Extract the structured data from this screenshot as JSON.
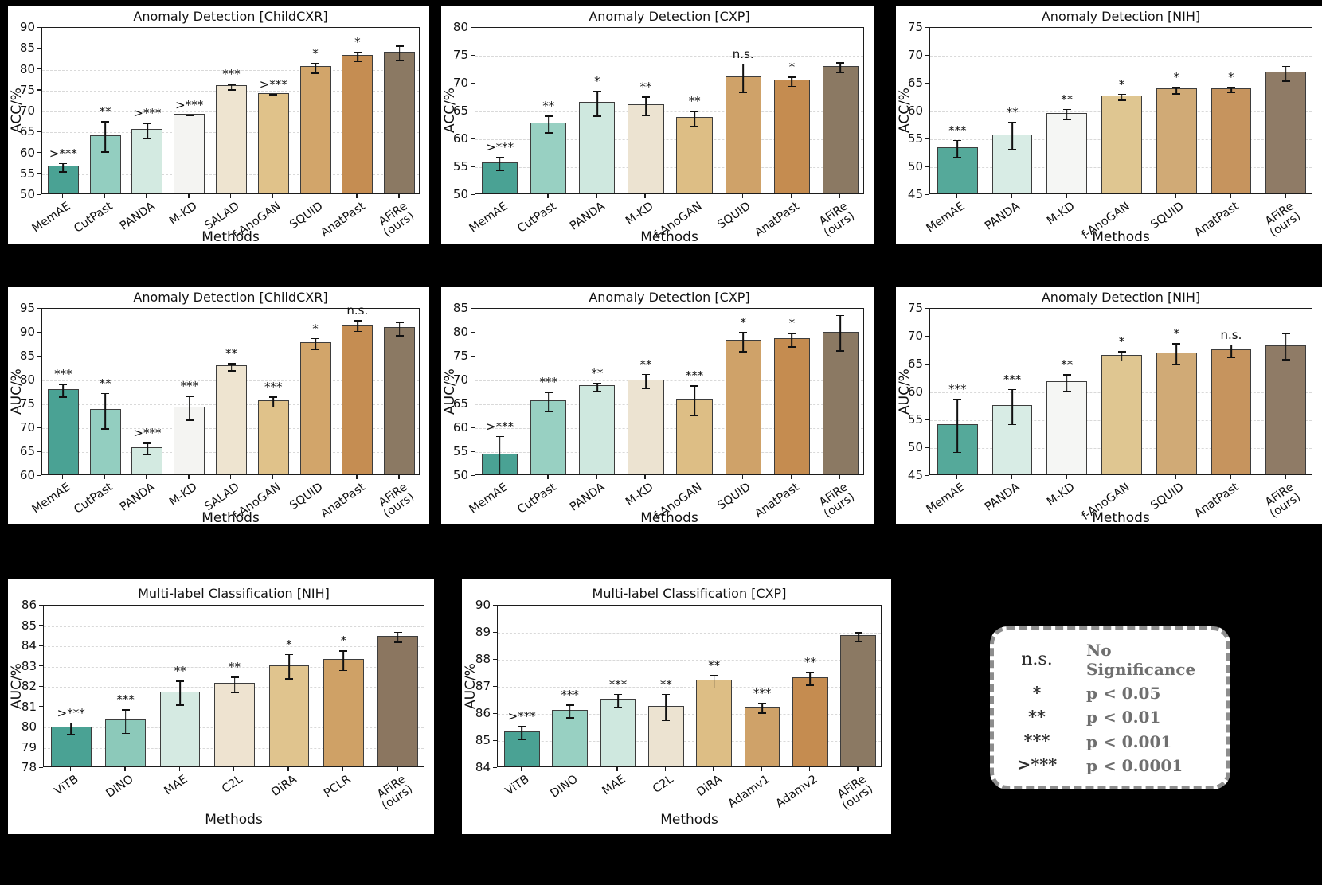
{
  "figure": {
    "background": "#000000",
    "panel_background": "#ffffff"
  },
  "chart_data": [
    {
      "id": "acc_childcxr",
      "type": "bar",
      "title": "Anomaly Detection [ChildCXR]",
      "xlabel": "Methods",
      "ylabel": "ACC/%",
      "ylim": [
        50,
        90
      ],
      "ytick_step": 5,
      "grid": "dashed-horizontal",
      "legend_position": "none",
      "categories": [
        "MemAE",
        "CutPast",
        "PANDA",
        "M-KD",
        "SALAD",
        "f-AnoGAN",
        "SQUID",
        "AnatPast",
        "AFiRe\n(ours)"
      ],
      "values": [
        56.6,
        64.0,
        65.4,
        69.1,
        75.9,
        74.0,
        80.4,
        83.1,
        84.0
      ],
      "errors": [
        1.1,
        3.7,
        1.9,
        0.2,
        0.8,
        0.15,
        1.3,
        1.2,
        1.8
      ],
      "significance": [
        ">***",
        "**",
        ">***",
        ">***",
        "***",
        ">***",
        "*",
        "*",
        ""
      ],
      "bar_colors": [
        "#4aa294",
        "#93cec0",
        "#d3eae1",
        "#f4f4f2",
        "#eee4d0",
        "#e0c28a",
        "#d2a56a",
        "#c58d52",
        "#8b7963"
      ]
    },
    {
      "id": "acc_cxp",
      "type": "bar",
      "title": "Anomaly Detection [CXP]",
      "xlabel": "Methods",
      "ylabel": "ACC/%",
      "ylim": [
        50,
        80
      ],
      "ytick_step": 5,
      "grid": "dashed-horizontal",
      "legend_position": "none",
      "categories": [
        "MemAE",
        "CutPast",
        "PANDA",
        "M-KD",
        "f-AnoGAN",
        "SQUID",
        "AnatPast",
        "AFiRe\n(ours)"
      ],
      "values": [
        55.6,
        62.7,
        66.4,
        66.0,
        63.7,
        71.0,
        70.4,
        72.9
      ],
      "errors": [
        1.2,
        1.6,
        2.3,
        1.7,
        1.4,
        2.6,
        0.9,
        0.9
      ],
      "significance": [
        ">***",
        "**",
        "*",
        "**",
        "**",
        "n.s.",
        "*",
        ""
      ],
      "bar_colors": [
        "#4aa294",
        "#98d0c2",
        "#cfe8df",
        "#ece3d1",
        "#ddbe85",
        "#cfa269",
        "#c58c50",
        "#8b7963"
      ]
    },
    {
      "id": "acc_nih",
      "type": "bar",
      "title": "Anomaly Detection [NIH]",
      "xlabel": "Methods",
      "ylabel": "ACC/%",
      "ylim": [
        45,
        75
      ],
      "ytick_step": 5,
      "grid": "dashed-horizontal",
      "legend_position": "none",
      "categories": [
        "MemAE",
        "PANDA",
        "M-KD",
        "f-AnoGAN",
        "SQUID",
        "AnatPast",
        "AFiRe\n(ours)"
      ],
      "values": [
        53.3,
        55.6,
        59.5,
        62.6,
        63.8,
        63.9,
        66.8
      ],
      "errors": [
        1.6,
        2.5,
        1.0,
        0.6,
        0.7,
        0.5,
        1.4
      ],
      "significance": [
        "***",
        "**",
        "**",
        "*",
        "*",
        "*",
        ""
      ],
      "bar_colors": [
        "#55a99a",
        "#d8ece5",
        "#f5f6f4",
        "#dfc691",
        "#d0aa76",
        "#c6945e",
        "#8f7b66"
      ]
    },
    {
      "id": "auc_childcxr",
      "type": "bar",
      "title": "Anomaly Detection [ChildCXR]",
      "xlabel": "Methods",
      "ylabel": "AUC/%",
      "ylim": [
        60,
        95
      ],
      "ytick_step": 5,
      "grid": "dashed-horizontal",
      "legend_position": "none",
      "categories": [
        "MemAE",
        "CutPast",
        "PANDA",
        "M-KD",
        "SALAD",
        "f-AnoGAN",
        "SQUID",
        "AnatPast",
        "AFiRe\n(ours)"
      ],
      "values": [
        77.9,
        73.6,
        65.7,
        74.2,
        82.8,
        75.5,
        87.7,
        91.4,
        90.8
      ],
      "errors": [
        1.4,
        3.8,
        1.3,
        2.6,
        0.8,
        1.1,
        1.2,
        1.2,
        1.5
      ],
      "significance": [
        "***",
        "**",
        ">***",
        "***",
        "**",
        "***",
        "*",
        "n.s.",
        ""
      ],
      "bar_colors": [
        "#4aa294",
        "#93cec0",
        "#d3eae1",
        "#f4f4f2",
        "#eee4d0",
        "#e0c28a",
        "#d2a56a",
        "#c58d52",
        "#8b7963"
      ]
    },
    {
      "id": "auc_cxp",
      "type": "bar",
      "title": "Anomaly Detection [CXP]",
      "xlabel": "Methods",
      "ylabel": "AUC/%",
      "ylim": [
        50,
        85
      ],
      "ytick_step": 5,
      "grid": "dashed-horizontal",
      "legend_position": "none",
      "categories": [
        "MemAE",
        "CutPast",
        "PANDA",
        "M-KD",
        "f-AnoGAN",
        "SQUID",
        "AnatPast",
        "AFiRe\n(ours)"
      ],
      "values": [
        54.4,
        65.5,
        68.6,
        69.8,
        65.8,
        78.1,
        78.5,
        79.9
      ],
      "errors": [
        4.0,
        2.1,
        0.9,
        1.6,
        3.2,
        2.1,
        1.5,
        3.8
      ],
      "significance": [
        ">***",
        "***",
        "**",
        "**",
        "***",
        "*",
        "*",
        ""
      ],
      "bar_colors": [
        "#4aa294",
        "#98d0c2",
        "#cfe8df",
        "#ece3d1",
        "#ddbe85",
        "#cfa269",
        "#c58c50",
        "#8b7963"
      ]
    },
    {
      "id": "auc_nih",
      "type": "bar",
      "title": "Anomaly Detection [NIH]",
      "xlabel": "Methods",
      "ylabel": "AUC/%",
      "ylim": [
        45,
        75
      ],
      "ytick_step": 5,
      "grid": "dashed-horizontal",
      "legend_position": "none",
      "categories": [
        "MemAE",
        "PANDA",
        "M-KD",
        "f-AnoGAN",
        "SQUID",
        "AnatPast",
        "AFiRe\n(ours)"
      ],
      "values": [
        54.0,
        57.4,
        61.7,
        66.5,
        66.9,
        67.4,
        68.2
      ],
      "errors": [
        4.8,
        3.2,
        1.6,
        0.9,
        1.9,
        1.2,
        2.4
      ],
      "significance": [
        "***",
        "***",
        "**",
        "*",
        "*",
        "n.s.",
        ""
      ],
      "bar_colors": [
        "#55a99a",
        "#d8ece5",
        "#f5f6f4",
        "#dfc691",
        "#d0aa76",
        "#c6945e",
        "#8f7b66"
      ]
    },
    {
      "id": "mlc_nih",
      "type": "bar",
      "title": "Multi-label Classification [NIH]",
      "xlabel": "Methods",
      "ylabel": "AUC/%",
      "ylim": [
        78,
        86
      ],
      "ytick_step": 1,
      "grid": "dashed-horizontal",
      "legend_position": "none",
      "categories": [
        "ViTB",
        "DINO",
        "MAE",
        "C2L",
        "DiRA",
        "PCLR",
        "AFiRe\n(ours)"
      ],
      "values": [
        79.95,
        80.3,
        81.7,
        82.1,
        83.0,
        83.3,
        84.45
      ],
      "errors": [
        0.3,
        0.6,
        0.62,
        0.4,
        0.62,
        0.5,
        0.27
      ],
      "significance": [
        ">***",
        "***",
        "**",
        "**",
        "*",
        "*",
        ""
      ],
      "bar_colors": [
        "#4aa294",
        "#8cc9ba",
        "#d5eae2",
        "#eee3d0",
        "#e0c48e",
        "#cfa166",
        "#8b7660"
      ]
    },
    {
      "id": "mlc_cxp",
      "type": "bar",
      "title": "Multi-label Classification [CXP]",
      "xlabel": "Methods",
      "ylabel": "AUC/%",
      "ylim": [
        84,
        90
      ],
      "ytick_step": 1,
      "grid": "dashed-horizontal",
      "legend_position": "none",
      "categories": [
        "ViTB",
        "DINO",
        "MAE",
        "C2L",
        "DiRA",
        "Adamv1",
        "Adamv2",
        "AFiRe\n(ours)"
      ],
      "values": [
        85.3,
        86.1,
        86.5,
        86.25,
        87.2,
        86.22,
        87.3,
        88.85
      ],
      "errors": [
        0.25,
        0.25,
        0.25,
        0.5,
        0.25,
        0.2,
        0.25,
        0.18
      ],
      "significance": [
        ">***",
        "***",
        "***",
        "**",
        "**",
        "***",
        "**",
        ""
      ],
      "bar_colors": [
        "#4aa294",
        "#98d0c2",
        "#cfe8df",
        "#ece3d1",
        "#ddbe85",
        "#cfa269",
        "#c58c50",
        "#8b7963"
      ]
    }
  ],
  "legend": {
    "rows": [
      {
        "symbol": "n.s.",
        "label": "No Significance"
      },
      {
        "symbol": "*",
        "label": "p < 0.05"
      },
      {
        "symbol": "**",
        "label": "p < 0.01"
      },
      {
        "symbol": "***",
        "label": "p < 0.001"
      },
      {
        "symbol": ">***",
        "label": "p < 0.0001"
      }
    ]
  }
}
